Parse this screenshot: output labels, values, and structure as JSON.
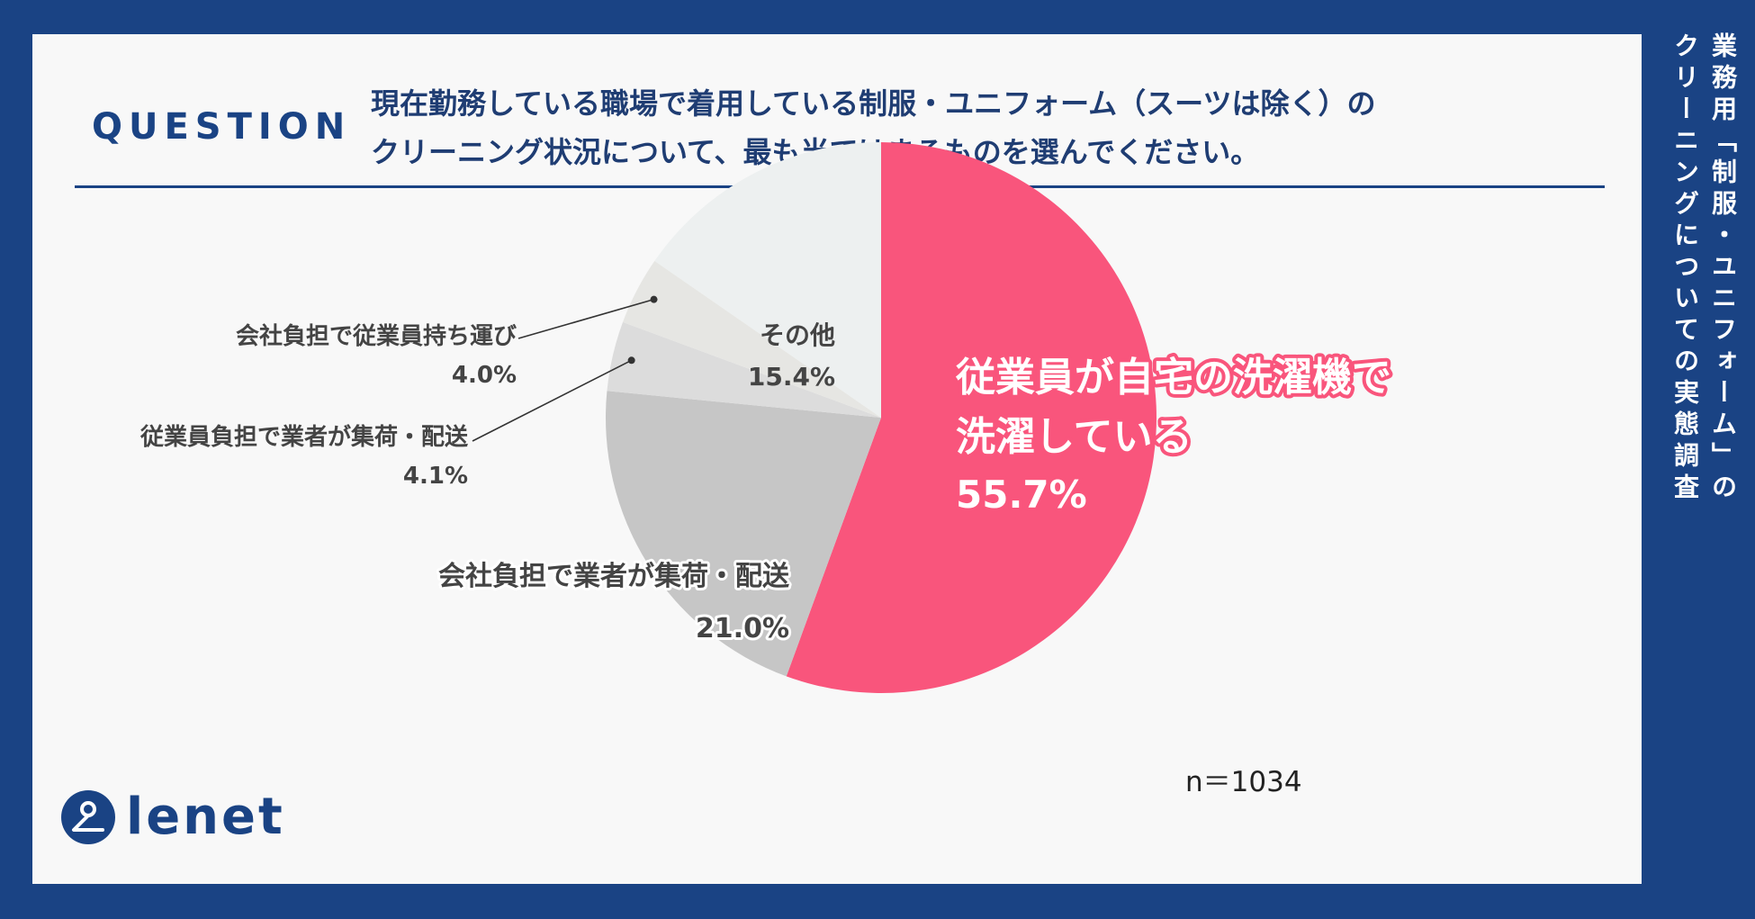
{
  "header": {
    "question_label": "QUESTION",
    "question_line1": "現在勤務している職場で着用している制服・ユニフォーム（スーツは除く）の",
    "question_line2": "クリーニング状況について、最も当てはまるものを選んでください。"
  },
  "side_title": {
    "line1": "業務用「制服・ユニフォーム」の",
    "line2": "クリーニングについての実態調査"
  },
  "sample_size": "n＝1034",
  "logo": {
    "text": "lenet"
  },
  "colors": {
    "frame": "#1a4384",
    "card": "#f8f8f8",
    "accent": "#f9557c",
    "label": "#444444"
  },
  "chart_data": {
    "type": "pie",
    "start": "12 o'clock",
    "direction": "clockwise",
    "slices": [
      {
        "label": "従業員が自宅の洗濯機で洗濯している",
        "label_lines": [
          "従業員が自宅の洗濯機で",
          "洗濯している"
        ],
        "value": 55.7,
        "value_text": "55.7%",
        "color": "#f9557c"
      },
      {
        "label": "会社負担で業者が集荷・配送",
        "label_lines": [
          "会社負担で業者が集荷・配送"
        ],
        "value": 21.0,
        "value_text": "21.0%",
        "color": "#c6c6c6"
      },
      {
        "label": "従業員負担で業者が集荷・配送",
        "label_lines": [
          "従業員負担で業者が集荷・配送"
        ],
        "value": 4.1,
        "value_text": "4.1%",
        "color": "#dcdcdc"
      },
      {
        "label": "会社負担で従業員持ち運び",
        "label_lines": [
          "会社負担で従業員持ち運び"
        ],
        "value": 4.0,
        "value_text": "4.0%",
        "color": "#e6e6e3"
      },
      {
        "label": "その他",
        "label_lines": [
          "その他"
        ],
        "value": 15.4,
        "value_text": "15.4%",
        "color": "#edf0f0"
      }
    ]
  }
}
